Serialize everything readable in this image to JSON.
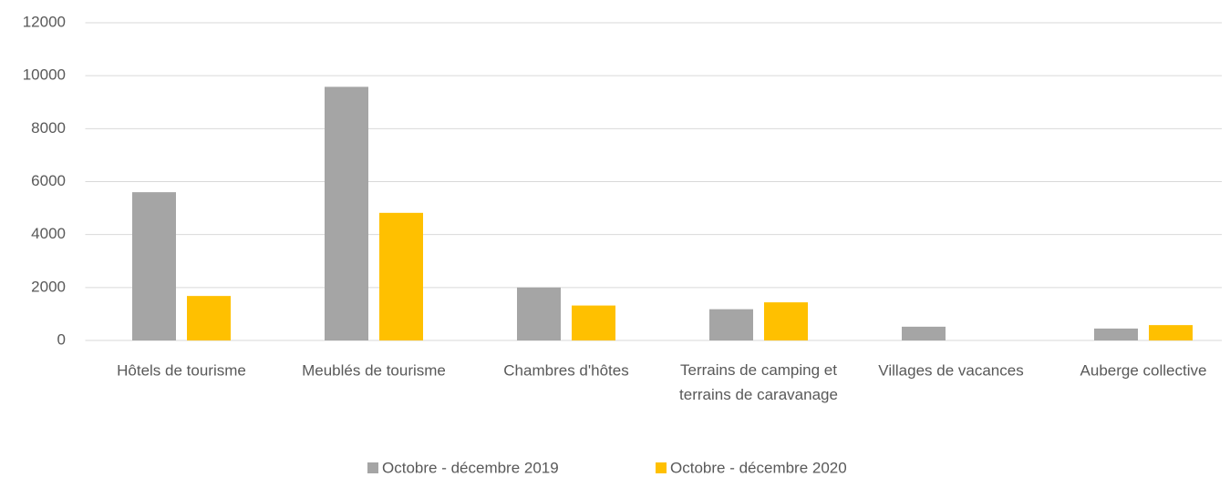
{
  "chart_data": {
    "type": "bar",
    "categories": [
      "Hôtels de tourisme",
      "Meublés de tourisme",
      "Chambres d'hôtes",
      "Terrains de camping et terrains de caravanage",
      "Villages de vacances",
      "Auberge collective"
    ],
    "series": [
      {
        "name": "Octobre - décembre 2019",
        "color": "#a5a5a5",
        "values": [
          5600,
          9580,
          2000,
          1180,
          520,
          450
        ]
      },
      {
        "name": "Octobre - décembre 2020",
        "color": "#ffc000",
        "values": [
          1680,
          4820,
          1320,
          1440,
          0,
          580
        ]
      }
    ],
    "ylim": [
      0,
      12000
    ],
    "yticks": [
      0,
      2000,
      4000,
      6000,
      8000,
      10000,
      12000
    ],
    "grid": true,
    "legend": "bottom"
  }
}
